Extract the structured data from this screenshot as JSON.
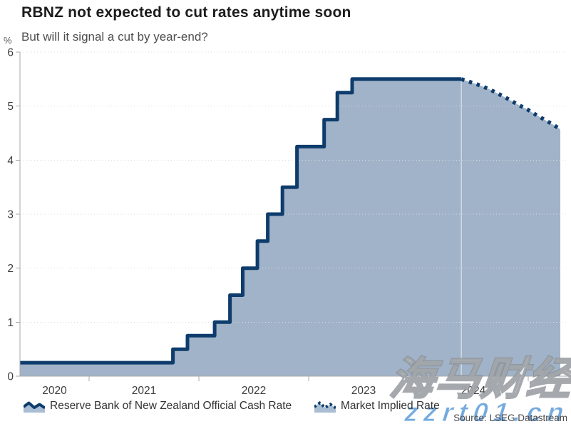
{
  "chart_data": {
    "type": "area",
    "title": "RBNZ not expected to cut rates anytime soon",
    "subtitle": "But will it signal a cut by year-end?",
    "unit_label": "%",
    "ylabel": "%",
    "ylim": [
      0,
      6
    ],
    "y_ticks": [
      0,
      1,
      2,
      3,
      4,
      5,
      6
    ],
    "grid": "horizontal-dotted",
    "x_range": [
      "2020-05",
      "2025-04"
    ],
    "x_tick_boundaries": [
      "2021-01-01",
      "2022-01-01",
      "2023-01-01",
      "2024-01-01",
      "2025-01-01"
    ],
    "x_year_labels": [
      "2020",
      "2021",
      "2022",
      "2023",
      "2024"
    ],
    "forecast_divider_date": "2024-05-22",
    "legend_position": "bottom",
    "colors": {
      "line": "#0e3c6c",
      "fill": "#a1b3c8",
      "gridline": "#d9dce4",
      "axis": "#a8a8a8",
      "tick_label": "#3d3d3d"
    },
    "series": [
      {
        "name": "Reserve Bank of New Zealand Official Cash Rate",
        "style": "step-solid",
        "points": [
          [
            "2020-05-15",
            0.25
          ],
          [
            "2021-10-06",
            0.5
          ],
          [
            "2021-11-24",
            0.75
          ],
          [
            "2022-02-23",
            1.0
          ],
          [
            "2022-04-13",
            1.5
          ],
          [
            "2022-05-25",
            2.0
          ],
          [
            "2022-07-13",
            2.5
          ],
          [
            "2022-08-17",
            3.0
          ],
          [
            "2022-10-05",
            3.5
          ],
          [
            "2022-11-23",
            4.25
          ],
          [
            "2023-02-22",
            4.75
          ],
          [
            "2023-04-05",
            5.25
          ],
          [
            "2023-05-24",
            5.5
          ]
        ],
        "end_date": "2024-05-22"
      },
      {
        "name": "Market Implied Rate",
        "style": "dotted-line",
        "points": [
          [
            "2024-05-22",
            5.5
          ],
          [
            "2024-06-24",
            5.44
          ],
          [
            "2024-07-25",
            5.38
          ],
          [
            "2024-08-25",
            5.31
          ],
          [
            "2024-09-26",
            5.22
          ],
          [
            "2024-10-26",
            5.13
          ],
          [
            "2024-11-27",
            5.03
          ],
          [
            "2024-12-28",
            4.94
          ],
          [
            "2025-01-27",
            4.84
          ],
          [
            "2025-02-27",
            4.74
          ],
          [
            "2025-03-22",
            4.66
          ],
          [
            "2025-04-14",
            4.58
          ]
        ]
      }
    ]
  },
  "watermarks": [
    {
      "text": "海马财经"
    },
    {
      "text": "zzrt01.cn"
    }
  ],
  "source": "Source: LSEG Datastream"
}
